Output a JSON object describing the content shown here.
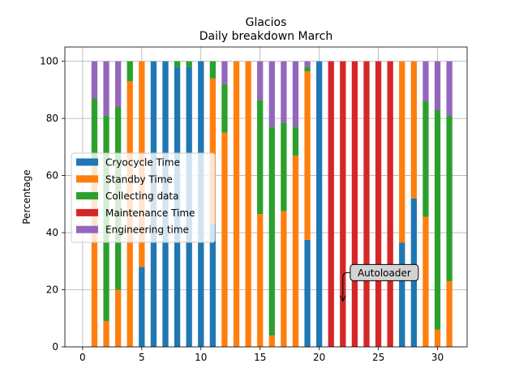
{
  "chart_data": {
    "type": "bar",
    "stacked": true,
    "title": "Glacios",
    "subtitle": "Daily breakdown March",
    "xlabel": "",
    "ylabel": "Percentage",
    "xlim": [
      -1.5,
      32.5
    ],
    "ylim": [
      0,
      105
    ],
    "xticks": [
      0,
      5,
      10,
      15,
      20,
      25,
      30
    ],
    "yticks": [
      0,
      20,
      40,
      60,
      80,
      100
    ],
    "grid": true,
    "legend_position": "center-left",
    "x": [
      1,
      2,
      3,
      4,
      5,
      6,
      7,
      8,
      9,
      10,
      11,
      12,
      13,
      14,
      15,
      16,
      17,
      18,
      19,
      20,
      21,
      22,
      23,
      24,
      25,
      26,
      27,
      28,
      29,
      30,
      31
    ],
    "series": [
      {
        "name": "Cryocycle Time",
        "color": "#1f77b4",
        "values": [
          0,
          0,
          0,
          0,
          28,
          100,
          100,
          98,
          98,
          100,
          43,
          0,
          0,
          0,
          0,
          0,
          0,
          0,
          37.5,
          100,
          0,
          0,
          0,
          0,
          0,
          0,
          36.5,
          52,
          0,
          0,
          0
        ]
      },
      {
        "name": "Standby Time",
        "color": "#ff7f0e",
        "values": [
          64,
          9,
          20,
          93,
          72,
          0,
          0,
          0,
          0,
          0,
          51,
          75,
          100,
          100,
          46.5,
          4,
          47.5,
          67,
          59,
          0,
          0,
          0,
          0,
          0,
          0,
          0,
          63.5,
          48,
          45.5,
          6,
          23
        ]
      },
      {
        "name": "Collecting data",
        "color": "#2ca02c",
        "values": [
          23,
          72,
          64,
          7,
          0,
          0,
          0,
          2,
          2,
          0,
          6,
          17,
          0,
          0,
          40,
          73,
          31,
          10,
          1.5,
          0,
          0,
          0,
          0,
          0,
          0,
          0,
          0,
          0,
          40.5,
          77,
          58
        ]
      },
      {
        "name": "Maintenance Time",
        "color": "#d62728",
        "values": [
          0,
          0,
          0,
          0,
          0,
          0,
          0,
          0,
          0,
          0,
          0,
          0,
          0,
          0,
          0,
          0,
          0,
          0,
          0,
          0,
          100,
          100,
          100,
          100,
          100,
          100,
          0,
          0,
          0,
          0,
          0
        ]
      },
      {
        "name": "Engineering time",
        "color": "#9467bd",
        "values": [
          13,
          19,
          16,
          0,
          0,
          0,
          0,
          0,
          0,
          0,
          0,
          8,
          0,
          0,
          13.5,
          23,
          21.5,
          23,
          2,
          0,
          0,
          0,
          0,
          0,
          0,
          0,
          0,
          0,
          14,
          17,
          19
        ]
      }
    ],
    "annotations": [
      {
        "text": "Autoloader",
        "text_x": 25.5,
        "text_y": 26,
        "arrow_to_x": 22,
        "arrow_to_y": 16
      }
    ]
  }
}
